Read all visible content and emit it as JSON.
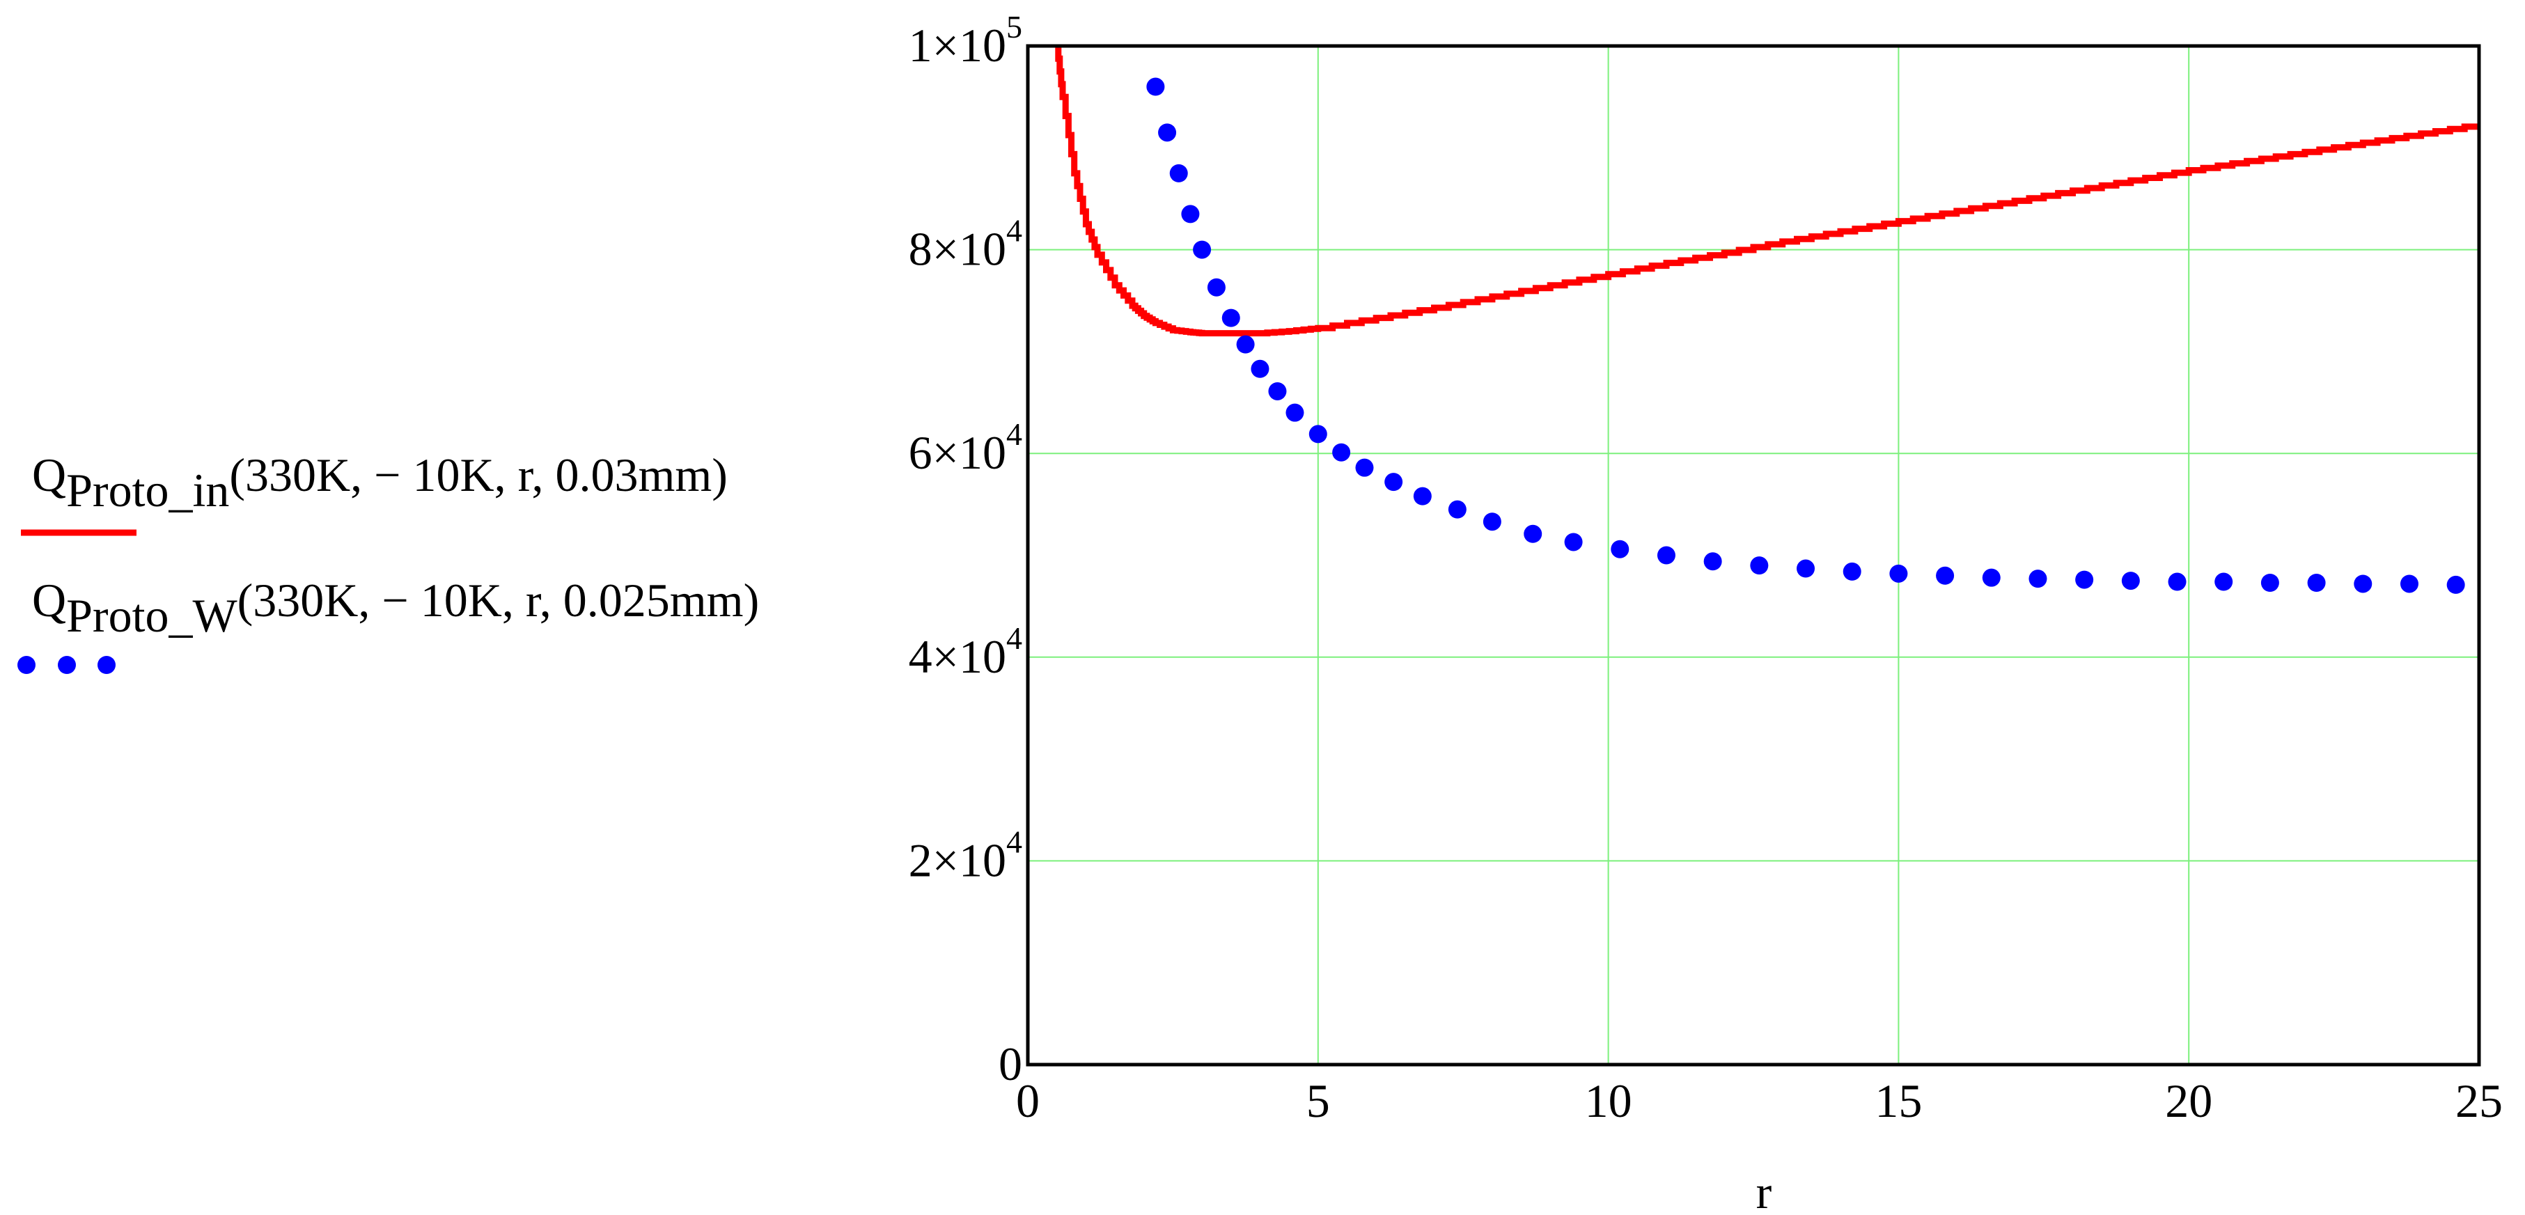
{
  "chart_data": {
    "type": "line",
    "xlabel": "r",
    "ylabel": "",
    "xlim": [
      0,
      25
    ],
    "ylim": [
      0,
      100000
    ],
    "grid": true,
    "grid_color": "#7cf07c",
    "legend_placement": "left",
    "x_ticks": [
      {
        "value": 0,
        "label": "0"
      },
      {
        "value": 5,
        "label": "5"
      },
      {
        "value": 10,
        "label": "10"
      },
      {
        "value": 15,
        "label": "15"
      },
      {
        "value": 20,
        "label": "20"
      },
      {
        "value": 25,
        "label": "25"
      }
    ],
    "y_ticks": [
      {
        "value": 0,
        "mant": "0",
        "exp": ""
      },
      {
        "value": 20000,
        "mant": "2×10",
        "exp": "4"
      },
      {
        "value": 40000,
        "mant": "4×10",
        "exp": "4"
      },
      {
        "value": 60000,
        "mant": "6×10",
        "exp": "4"
      },
      {
        "value": 80000,
        "mant": "8×10",
        "exp": "4"
      },
      {
        "value": 100000,
        "mant": "1×10",
        "exp": "5"
      }
    ],
    "series": [
      {
        "legend": {
          "main": "Q",
          "sub": "Proto_in",
          "args": "(330K, − 10K, r, 0.03mm)"
        },
        "color": "#ff0000",
        "style": "solid-step",
        "x": [
          0.5,
          0.6,
          0.8,
          1.0,
          1.2,
          1.5,
          1.8,
          2.0,
          2.2,
          2.5,
          2.8,
          3.0,
          3.5,
          4.0,
          4.5,
          5.0,
          6.0,
          7.0,
          8.0,
          9.0,
          10.0,
          11.0,
          12.0,
          13.0,
          14.0,
          15.0,
          16.0,
          17.0,
          18.0,
          19.0,
          20.0,
          21.0,
          22.0,
          23.0,
          24.0,
          25.0
        ],
        "y": [
          100000,
          95000,
          87500,
          82500,
          79500,
          76500,
          74500,
          73500,
          72800,
          72100,
          71900,
          71800,
          71800,
          71800,
          72000,
          72300,
          73300,
          74300,
          75400,
          76500,
          77600,
          78700,
          79700,
          80800,
          81800,
          82800,
          83800,
          84800,
          85800,
          86800,
          87800,
          88700,
          89600,
          90500,
          91400,
          92300
        ]
      },
      {
        "legend": {
          "main": "Q",
          "sub": "Proto_W",
          "args": "(330K, − 10K, r, 0.025mm)"
        },
        "color": "#0000ff",
        "style": "dots",
        "x": [
          2.0,
          2.2,
          2.4,
          2.6,
          2.8,
          3.0,
          3.25,
          3.5,
          3.75,
          4.0,
          4.3,
          4.6,
          5.0,
          5.4,
          5.8,
          6.3,
          6.8,
          7.4,
          8.0,
          8.7,
          9.4,
          10.2,
          11.0,
          11.8,
          12.6,
          13.4,
          14.2,
          15.0,
          15.8,
          16.6,
          17.4,
          18.2,
          19.0,
          19.8,
          20.6,
          21.4,
          22.2,
          23.0,
          23.8,
          24.6
        ],
        "y": [
          100500,
          96000,
          91500,
          87500,
          83500,
          80000,
          76300,
          73300,
          70700,
          68300,
          66100,
          64000,
          61900,
          60100,
          58600,
          57200,
          55800,
          54500,
          53300,
          52100,
          51300,
          50600,
          50000,
          49400,
          49000,
          48700,
          48400,
          48200,
          48000,
          47800,
          47700,
          47600,
          47500,
          47400,
          47400,
          47300,
          47300,
          47200,
          47200,
          47100
        ]
      }
    ]
  }
}
